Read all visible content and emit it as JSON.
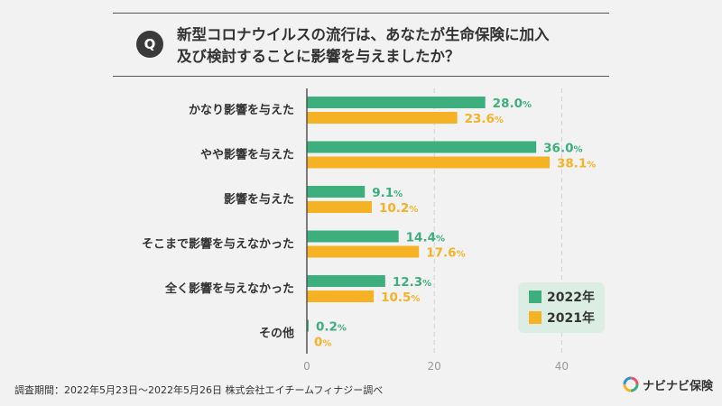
{
  "question": {
    "badge": "Q",
    "line1": "新型コロナウイルスの流行は、あなたが生命保険に加入",
    "line2": "及び検討することに影響を与えましたか？"
  },
  "chart_data": {
    "type": "bar",
    "orientation": "horizontal",
    "categories": [
      "かなり影響を与えた",
      "やや影響を与えた",
      "影響を与えた",
      "そこまで影響を与えなかった",
      "全く影響を与えなかった",
      "その他"
    ],
    "series": [
      {
        "name": "2022年",
        "values": [
          28.0,
          36.0,
          9.1,
          14.4,
          12.3,
          0.2
        ],
        "labels": [
          "28.0",
          "36.0",
          "9.1",
          "14.4",
          "12.3",
          "0.2"
        ],
        "color": "#3dae7e"
      },
      {
        "name": "2021年",
        "values": [
          23.6,
          38.1,
          10.2,
          17.6,
          10.5,
          0
        ],
        "labels": [
          "23.6",
          "38.1",
          "10.2",
          "17.6",
          "10.5",
          "0"
        ],
        "color": "#f5b224"
      }
    ],
    "unit": "%",
    "xlim": [
      0,
      40
    ],
    "xticks": [
      0,
      20,
      40
    ],
    "grid": true,
    "legend_position": "bottom-right"
  },
  "footer": "調査期間：2022年5月23日〜2022年5月26日 株式会社エイチームフィナジー調べ",
  "brand": {
    "name": "ナビナビ保険",
    "icon": "navinavi-logo-icon"
  }
}
